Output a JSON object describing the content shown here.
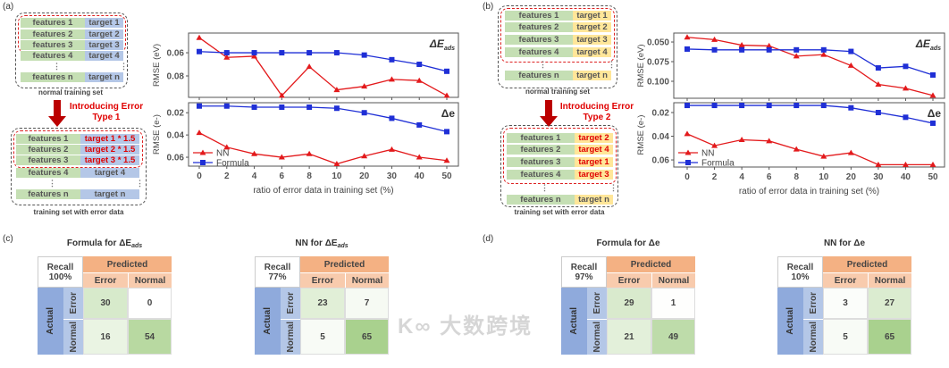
{
  "panel_labels": {
    "a": "(a)",
    "b": "(b)",
    "c": "(c)",
    "d": "(d)"
  },
  "diagram_a": {
    "normal_rows": [
      [
        "features 1",
        "target 1"
      ],
      [
        "features 2",
        "target 2"
      ],
      [
        "features 3",
        "target 3"
      ],
      [
        "features 4",
        "target 4"
      ]
    ],
    "last_row": [
      "features n",
      "target n"
    ],
    "vdots": "⋮",
    "normal_caption": "normal training set",
    "arrow_text": "Introducing Error Type 1",
    "error_rows": [
      [
        "features 1",
        "target 1 * 1.5"
      ],
      [
        "features 2",
        "target 2 * 1.5"
      ],
      [
        "features 3",
        "target 3 * 1.5"
      ],
      [
        "features 4",
        "target 4"
      ]
    ],
    "error_caption": "training set with error data"
  },
  "diagram_b": {
    "normal_rows": [
      [
        "features 1",
        "target 1"
      ],
      [
        "features 2",
        "target 2"
      ],
      [
        "features 3",
        "target 3"
      ],
      [
        "features 4",
        "target 4"
      ]
    ],
    "last_row": [
      "features n",
      "target n"
    ],
    "vdots": "⋮",
    "normal_caption": "normal training set",
    "arrow_text": "Introducing Error Type 2",
    "error_rows": [
      [
        "features 1",
        "target 2"
      ],
      [
        "features 2",
        "target 4"
      ],
      [
        "features 3",
        "target 1"
      ],
      [
        "features 4",
        "target 3"
      ]
    ],
    "error_caption": "training set with error data"
  },
  "colors": {
    "nn": "#e31a1c",
    "formula": "#1f2fd6"
  },
  "chart_data": [
    {
      "id": "a",
      "type": "line",
      "xlabel": "ratio of error data in training set (%)",
      "categories": [
        "0",
        "2",
        "4",
        "6",
        "8",
        "10",
        "20",
        "30",
        "40",
        "50"
      ],
      "legend": [
        "NN",
        "Formula"
      ],
      "legend_placement": "bottom-left",
      "panels": [
        {
          "title": "ΔE",
          "title_sub": "ads",
          "ylabel": "RMSE (eV)",
          "ylim": [
            0.043,
            0.0985
          ],
          "inverted": true,
          "yticks": [
            "0.06",
            "0.08"
          ],
          "ytick_values": [
            0.06,
            0.08
          ],
          "series": [
            {
              "name": "NN",
              "values": [
                0.047,
                0.064,
                0.063,
                0.097,
                0.072,
                0.092,
                0.089,
                0.083,
                0.084,
                0.097
              ]
            },
            {
              "name": "Formula",
              "values": [
                0.059,
                0.06,
                0.06,
                0.06,
                0.06,
                0.06,
                0.062,
                0.066,
                0.07,
                0.076
              ]
            }
          ]
        },
        {
          "title": "Δe",
          "title_sub": "",
          "ylabel": "RMSE (e-)",
          "ylim": [
            0.011,
            0.068
          ],
          "inverted": true,
          "yticks": [
            "0.02",
            "0.04",
            "0.06"
          ],
          "ytick_values": [
            0.02,
            0.04,
            0.06
          ],
          "series": [
            {
              "name": "NN",
              "values": [
                0.038,
                0.051,
                0.057,
                0.06,
                0.057,
                0.066,
                0.059,
                0.053,
                0.06,
                0.063
              ]
            },
            {
              "name": "Formula",
              "values": [
                0.014,
                0.014,
                0.015,
                0.015,
                0.015,
                0.016,
                0.02,
                0.025,
                0.031,
                0.037
              ]
            }
          ]
        }
      ]
    },
    {
      "id": "b",
      "type": "line",
      "xlabel": "ratio of error data in training set (%)",
      "categories": [
        "0",
        "2",
        "4",
        "6",
        "8",
        "10",
        "20",
        "30",
        "40",
        "50"
      ],
      "legend": [
        "NN",
        "Formula"
      ],
      "legend_placement": "bottom-left",
      "panels": [
        {
          "title": "ΔE",
          "title_sub": "ads",
          "ylabel": "RMSE (eV)",
          "ylim": [
            0.0386,
            0.1216
          ],
          "inverted": true,
          "yticks": [
            "0.050",
            "0.075",
            "0.100"
          ],
          "ytick_values": [
            0.05,
            0.075,
            0.1
          ],
          "series": [
            {
              "name": "NN",
              "values": [
                0.044,
                0.047,
                0.054,
                0.055,
                0.068,
                0.066,
                0.08,
                0.104,
                0.109,
                0.118
              ]
            },
            {
              "name": "Formula",
              "values": [
                0.059,
                0.06,
                0.06,
                0.06,
                0.06,
                0.06,
                0.062,
                0.083,
                0.081,
                0.092
              ]
            }
          ]
        },
        {
          "title": "Δe",
          "title_sub": "",
          "ylabel": "RMSE (e-)",
          "ylim": [
            0.0117,
            0.066
          ],
          "inverted": true,
          "yticks": [
            "0.02",
            "0.04",
            "0.06"
          ],
          "ytick_values": [
            0.02,
            0.04,
            0.06
          ],
          "series": [
            {
              "name": "NN",
              "values": [
                0.038,
                0.048,
                0.043,
                0.044,
                0.051,
                0.057,
                0.054,
                0.064,
                0.064,
                0.064
              ]
            },
            {
              "name": "Formula",
              "values": [
                0.014,
                0.014,
                0.014,
                0.014,
                0.014,
                0.014,
                0.016,
                0.02,
                0.024,
                0.029
              ]
            }
          ]
        }
      ]
    }
  ],
  "confusion_matrices": [
    {
      "title": "Formula for ΔE",
      "title_sub": "ads",
      "recall_label": "Recall",
      "recall": "100%",
      "predicted": "Predicted",
      "actual": "Actual",
      "cols": [
        "Error",
        "Normal"
      ],
      "rows": [
        "Error",
        "Normal"
      ],
      "values": [
        [
          30,
          0
        ],
        [
          16,
          54
        ]
      ]
    },
    {
      "title": "NN for ΔE",
      "title_sub": "ads",
      "recall_label": "Recall",
      "recall": "77%",
      "predicted": "Predicted",
      "actual": "Actual",
      "cols": [
        "Error",
        "Normal"
      ],
      "rows": [
        "Error",
        "Normal"
      ],
      "values": [
        [
          23,
          7
        ],
        [
          5,
          65
        ]
      ]
    },
    {
      "title": "Formula for Δe",
      "title_sub": "",
      "recall_label": "Recall",
      "recall": "97%",
      "predicted": "Predicted",
      "actual": "Actual",
      "cols": [
        "Error",
        "Normal"
      ],
      "rows": [
        "Error",
        "Normal"
      ],
      "values": [
        [
          29,
          1
        ],
        [
          21,
          49
        ]
      ]
    },
    {
      "title": "NN for Δe",
      "title_sub": "",
      "recall_label": "Recall",
      "recall": "10%",
      "predicted": "Predicted",
      "actual": "Actual",
      "cols": [
        "Error",
        "Normal"
      ],
      "rows": [
        "Error",
        "Normal"
      ],
      "values": [
        [
          3,
          27
        ],
        [
          5,
          65
        ]
      ]
    }
  ],
  "watermark": "大数跨境"
}
